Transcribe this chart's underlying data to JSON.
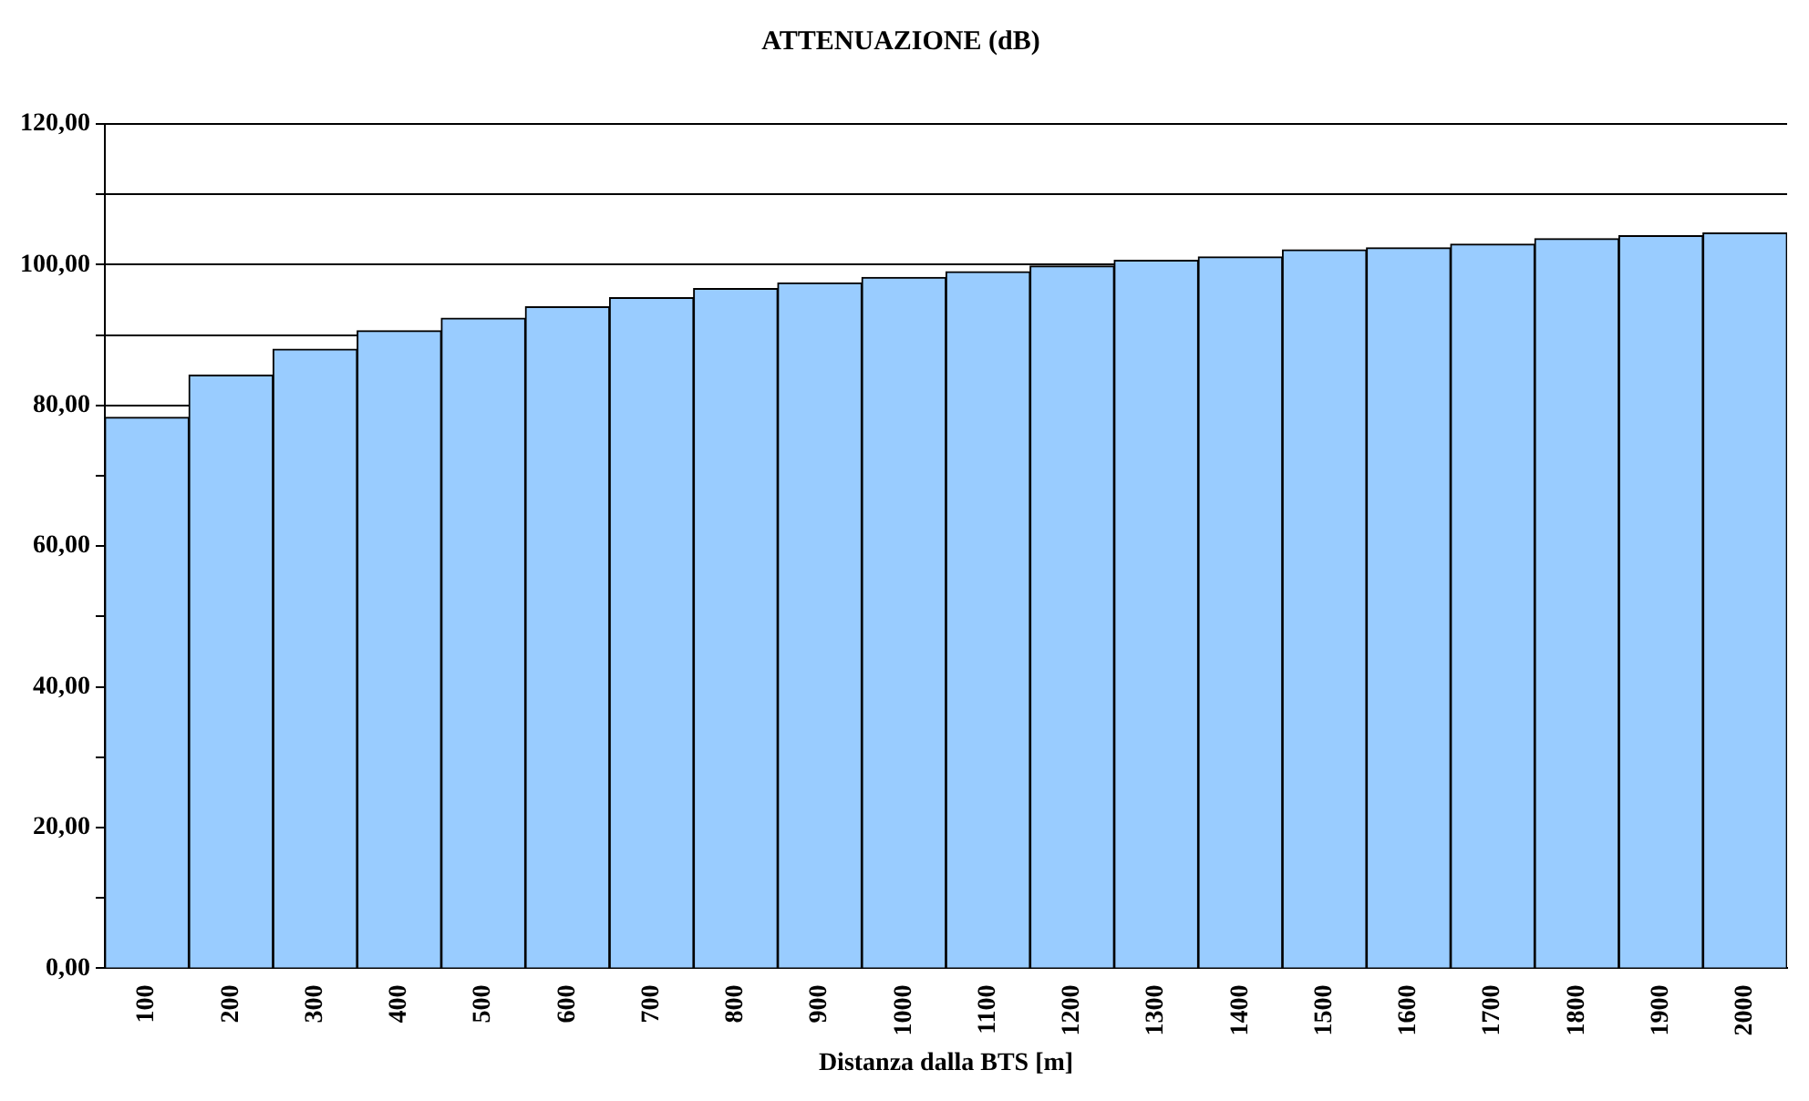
{
  "chart_data": {
    "type": "bar",
    "title": "ATTENUAZIONE (dB)",
    "xlabel": "Distanza dalla BTS [m]",
    "categories": [
      "100",
      "200",
      "300",
      "400",
      "500",
      "600",
      "700",
      "800",
      "900",
      "1000",
      "1100",
      "1200",
      "1300",
      "1400",
      "1500",
      "1600",
      "1700",
      "1800",
      "1900",
      "2000"
    ],
    "values": [
      78.3,
      84.3,
      88.0,
      90.6,
      92.4,
      94.0,
      95.3,
      96.6,
      97.4,
      98.2,
      99.0,
      99.8,
      100.6,
      101.1,
      102.1,
      102.4,
      102.9,
      103.7,
      104.1,
      104.5
    ],
    "color": "#99ccff",
    "ylim": [
      0,
      120
    ],
    "yticks": [
      {
        "value": 0,
        "label": "0,00"
      },
      {
        "value": 10,
        "label": null
      },
      {
        "value": 20,
        "label": "20,00"
      },
      {
        "value": 30,
        "label": null
      },
      {
        "value": 40,
        "label": "40,00"
      },
      {
        "value": 50,
        "label": null
      },
      {
        "value": 60,
        "label": "60,00"
      },
      {
        "value": 70,
        "label": null
      },
      {
        "value": 80,
        "label": "80,00"
      },
      {
        "value": 90,
        "label": null
      },
      {
        "value": 100,
        "label": "100,00"
      },
      {
        "value": 110,
        "label": null
      },
      {
        "value": 120,
        "label": "120,00"
      }
    ],
    "grid": "y",
    "legend": false
  }
}
